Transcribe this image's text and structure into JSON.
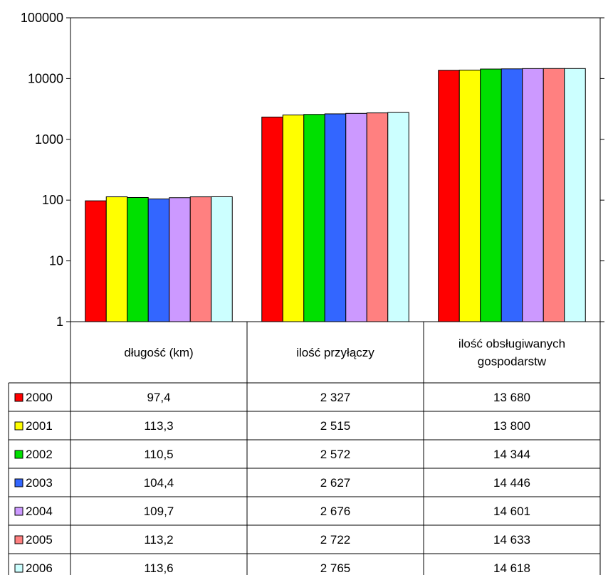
{
  "chart_data": {
    "type": "bar",
    "title": "",
    "xlabel": "",
    "ylabel": "",
    "yscale": "log",
    "ylim": [
      1,
      100000
    ],
    "yticks": [
      "1",
      "10",
      "100",
      "1000",
      "10000",
      "100000"
    ],
    "grid": false,
    "legend": "data-table",
    "categories": [
      [
        "długość (km)"
      ],
      [
        "ilość przyłączy"
      ],
      [
        "ilość obsługiwanych",
        "gospodarstw"
      ]
    ],
    "series": [
      {
        "name": "2000",
        "color": "#ff0000",
        "values": [
          97.4,
          2327,
          13680
        ],
        "labels": [
          "97,4",
          "2 327",
          "13 680"
        ]
      },
      {
        "name": "2001",
        "color": "#ffff00",
        "values": [
          113.3,
          2515,
          13800
        ],
        "labels": [
          "113,3",
          "2 515",
          "13 800"
        ]
      },
      {
        "name": "2002",
        "color": "#00e000",
        "values": [
          110.5,
          2572,
          14344
        ],
        "labels": [
          "110,5",
          "2 572",
          "14 344"
        ]
      },
      {
        "name": "2003",
        "color": "#3366ff",
        "values": [
          104.4,
          2627,
          14446
        ],
        "labels": [
          "104,4",
          "2 627",
          "14 446"
        ]
      },
      {
        "name": "2004",
        "color": "#cc99ff",
        "values": [
          109.7,
          2676,
          14601
        ],
        "labels": [
          "109,7",
          "2 676",
          "14 601"
        ]
      },
      {
        "name": "2005",
        "color": "#ff8080",
        "values": [
          113.2,
          2722,
          14633
        ],
        "labels": [
          "113,2",
          "2 722",
          "14 633"
        ]
      },
      {
        "name": "2006",
        "color": "#ccffff",
        "values": [
          113.6,
          2765,
          14618
        ],
        "labels": [
          "113,6",
          "2 765",
          "14 618"
        ]
      }
    ]
  }
}
